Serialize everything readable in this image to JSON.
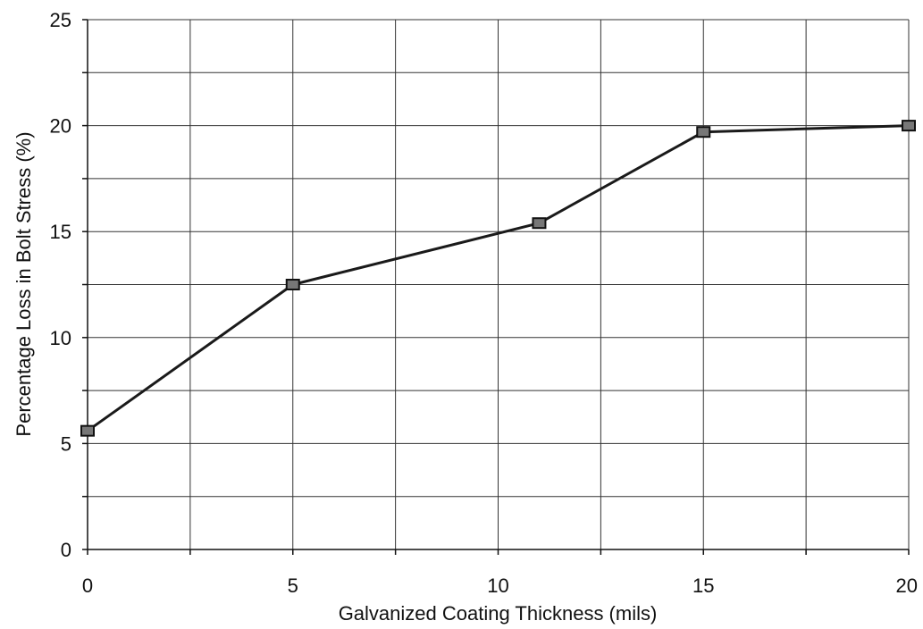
{
  "chart_data": {
    "type": "line",
    "title": "",
    "xlabel": "Galvanized Coating Thickness (mils)",
    "ylabel": "Percentage Loss in Bolt Stress (%)",
    "xlim": [
      0,
      20
    ],
    "ylim": [
      0,
      25
    ],
    "x_ticks": [
      "0",
      "5",
      "10",
      "15",
      "20"
    ],
    "y_ticks": [
      "0",
      "5",
      "10",
      "15",
      "20",
      "25"
    ],
    "grid": true,
    "legend": "none",
    "series": [
      {
        "x": [
          0,
          5,
          11,
          15,
          20
        ],
        "y": [
          5.6,
          12.5,
          15.4,
          19.7,
          20.0
        ],
        "color": "#1a1a1a"
      }
    ]
  }
}
